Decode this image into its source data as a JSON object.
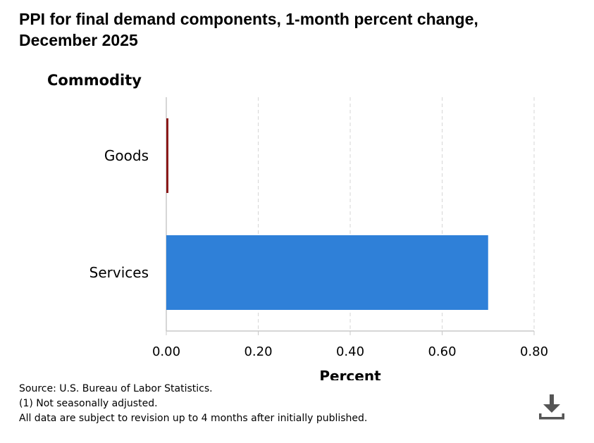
{
  "chart_data": {
    "type": "bar",
    "orientation": "horizontal",
    "title_lines": [
      "PPI for final demand components, 1-month percent change,",
      "December 2025"
    ],
    "ylabel": "Commodity",
    "xlabel": "Percent",
    "categories": [
      "Goods",
      "Services"
    ],
    "series": [
      {
        "values": [
          0.0,
          0.7
        ]
      }
    ],
    "bar_colors": [
      "#8b1a1a",
      "#2f80d8"
    ],
    "xlim": [
      0,
      0.8
    ],
    "xticks": [
      "0.00",
      "0.20",
      "0.40",
      "0.60",
      "0.80"
    ],
    "grid": true,
    "gridline_style": "dashed"
  },
  "notes": {
    "source": "Source: U.S. Bureau of Labor Statistics.",
    "footnote": "(1) Not seasonally adjusted.",
    "revision": "All data are subject to revision up to 4 months after initially published."
  },
  "icons": {
    "download": "download-icon"
  }
}
